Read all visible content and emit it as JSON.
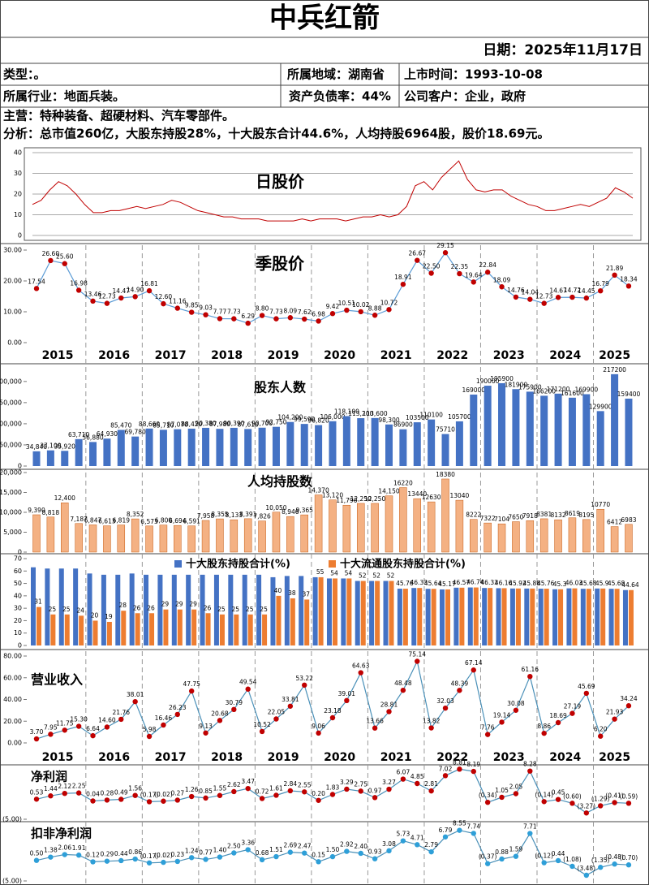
{
  "header": {
    "title": "中兵红箭",
    "date": "日期：2025年11月17日"
  },
  "info": {
    "rows": [
      [
        "类型：。",
        "所属地域：湖南省",
        "上市时间：1993-10-08"
      ],
      [
        "所属行业：地面兵装。",
        "资产负债率：44%",
        "公司客户：企业，政府"
      ]
    ],
    "main": "主营：特种装备、超硬材料、汽车零部件。",
    "analysis": "分析：总市值260亿，大股东持股28%，十大股东合计44.6%，人均持股6964股，股价18.69元。"
  },
  "years": [
    "2015",
    "2016",
    "2017",
    "2018",
    "2019",
    "2020",
    "2021",
    "2022",
    "2023",
    "2024",
    "2025"
  ],
  "chart_data": [
    {
      "type": "line",
      "title": "日股价",
      "color": "#c00000",
      "ylim": [
        0,
        40
      ],
      "yticks": [
        0,
        10,
        20,
        30,
        40
      ],
      "grid": true,
      "values": [
        15,
        17,
        22,
        26,
        24,
        20,
        15,
        11,
        11,
        12,
        12,
        13,
        14,
        13,
        14,
        15,
        17,
        16,
        14,
        12,
        11,
        10,
        9,
        9,
        8,
        8,
        8,
        7,
        7,
        7,
        7,
        8,
        7,
        8,
        8,
        8,
        7,
        8,
        9,
        9,
        10,
        9,
        10,
        14,
        24,
        26,
        22,
        28,
        32,
        36,
        27,
        22,
        21,
        22,
        22,
        19,
        17,
        15,
        14,
        12,
        12,
        13,
        14,
        15,
        14,
        16,
        18,
        23,
        21,
        18
      ]
    },
    {
      "type": "line",
      "title": "季股价",
      "color": "#5b9bd5",
      "marker_color": "#c00000",
      "ylim": [
        0,
        30
      ],
      "yticks": [
        {
          "value": 0,
          "label": "0.00"
        },
        {
          "value": 10,
          "label": "10.00"
        },
        {
          "value": 20,
          "label": "20.00"
        },
        {
          "value": 30,
          "label": "30.00"
        }
      ],
      "values": [
        17.54,
        26.6,
        25.6,
        16.98,
        13.46,
        12.73,
        14.47,
        14.9,
        16.81,
        12.6,
        11.16,
        9.85,
        9.03,
        7.77,
        7.73,
        6.29,
        8.8,
        7.73,
        8.09,
        7.62,
        6.98,
        9.42,
        10.51,
        10.02,
        8.88,
        10.72,
        18.91,
        26.67,
        22.5,
        29.15,
        22.35,
        19.64,
        22.84,
        18.09,
        14.76,
        14.04,
        12.73,
        14.67,
        14.72,
        14.45,
        16.79,
        21.89,
        18.34
      ],
      "value_labels": [
        "17.54",
        "26.60",
        "25.60",
        "16.98",
        "13.46",
        "12.73",
        "14.47",
        "14.90",
        "16.81",
        "12.60",
        "11.16",
        "9.85",
        "9.03",
        "7.77",
        "7.73",
        "6.29",
        "8.80",
        "7.73",
        "8.09",
        "7.62",
        "6.98",
        "9.42",
        "10.51",
        "10.02",
        "8.88",
        "10.72",
        "18.91",
        "26.67",
        "22.50",
        "29.15",
        "22.35",
        "19.64",
        "22.84",
        "18.09",
        "14.76",
        "14.04",
        "12.73",
        "14.67",
        "14.72",
        "14.45",
        "16.79",
        "21.89",
        "18.34"
      ]
    },
    {
      "type": "bar",
      "title": "股东人数",
      "color": "#4472c4",
      "ylim": [
        0,
        240000
      ],
      "yticks": [
        0,
        {
          "value": 50000,
          "label": "50,000"
        },
        {
          "value": 100000,
          "label": "100,000"
        },
        {
          "value": 150000,
          "label": "150,000"
        },
        {
          "value": 200000,
          "label": "200,000"
        }
      ],
      "values": [
        34840,
        37100,
        35920,
        63710,
        56880,
        64930,
        85470,
        69780,
        88660,
        85710,
        87070,
        88420,
        90380,
        87980,
        90390,
        87610,
        90700,
        92750,
        104200,
        99590,
        96820,
        106000,
        118100,
        113200,
        113600,
        98300,
        86900,
        103500,
        110100,
        75710,
        105700,
        169000,
        190000,
        195900,
        181900,
        175900,
        166200,
        171200,
        161600,
        169900,
        129900,
        217200,
        159400
      ],
      "value_labels": [
        "34,840",
        "37,100",
        "35,920",
        "63,710",
        "56,880",
        "64,930",
        "85,470",
        "69,780",
        "88,660",
        "85,710",
        "87,070",
        "88,420",
        "90,380",
        "87,980",
        "90,390",
        "87,610",
        "90,700",
        "92,750",
        "104,200",
        "99,590",
        "96,820",
        "106,000",
        "118,100",
        "113,200",
        "113,600",
        "98,300",
        "86900",
        "103500",
        "110100",
        "75710",
        "105700",
        "169000",
        "190000",
        "195900",
        "181900",
        "175900",
        "166200",
        "171200",
        "161600",
        "169900",
        "129900",
        "217200",
        "159400"
      ]
    },
    {
      "type": "bar",
      "title": "人均持股数",
      "color": "#f4b183",
      "ylim": [
        0,
        20000
      ],
      "yticks": [
        0,
        {
          "value": 5000,
          "label": "5,000"
        },
        {
          "value": 10000,
          "label": "10,000"
        },
        {
          "value": 15000,
          "label": "15,000"
        },
        {
          "value": 20000,
          "label": "20,000"
        }
      ],
      "values": [
        9390,
        8818,
        12400,
        7187,
        6847,
        6613,
        6819,
        8352,
        6573,
        6800,
        6694,
        6591,
        7958,
        8355,
        8133,
        8391,
        7826,
        10050,
        8946,
        9365,
        14370,
        13120,
        11790,
        12250,
        12250,
        14150,
        16220,
        13440,
        12630,
        18380,
        13040,
        8222,
        7322,
        7104,
        7650,
        7918,
        8381,
        8132,
        8619,
        8195,
        10770,
        6412,
        6983
      ],
      "value_labels": [
        "9,390",
        "8,818",
        "12,400",
        "7,187",
        "6,847",
        "6,613",
        "6,819",
        "8,352",
        "6,573",
        "6,800",
        "6,694",
        "6,591",
        "7,958",
        "8,355",
        "8,133",
        "8,391",
        "7,826",
        "10,050",
        "8,946",
        "9,365",
        "14,370",
        "13,120",
        "11,790",
        "12,250",
        "12,250",
        "14,150",
        "16220",
        "13440",
        "12630",
        "18380",
        "13040",
        "8222",
        "7322",
        "7104",
        "7650",
        "7918",
        "8381",
        "8132",
        "8619",
        "8195",
        "10770",
        "6412",
        "6983"
      ]
    },
    {
      "type": "grouped_bar",
      "ylim": [
        0,
        70
      ],
      "yticks": [
        0,
        10,
        20,
        30,
        40,
        50,
        60,
        70
      ],
      "series": [
        {
          "name": "十大股东持股合计(%)",
          "color": "#4472c4",
          "values": [
            63,
            62,
            62,
            62,
            58,
            57,
            57,
            58,
            57,
            57,
            57,
            57,
            57,
            57,
            57,
            57,
            57,
            55,
            56,
            56,
            55,
            54,
            54,
            52,
            52,
            52,
            45.76,
            46.33,
            45.64,
            45.17,
            46.57,
            46.74,
            46.33,
            46.16,
            45.92,
            45.88,
            45.76,
            45.3,
            46.03,
            45.68,
            45.9,
            45.68,
            44.64
          ]
        },
        {
          "name": "十大流通股东持股合计(%)",
          "color": "#ed7d31",
          "values": [
            31,
            25,
            25,
            24,
            20,
            19,
            28,
            26,
            26,
            29,
            29,
            29,
            26,
            25,
            25,
            25,
            25,
            40,
            38,
            37,
            55,
            54,
            54,
            52,
            52,
            52,
            45.76,
            46.33,
            45.64,
            45.17,
            46.57,
            46.74,
            46.33,
            46.16,
            45.92,
            45.88,
            45.76,
            45.3,
            46.03,
            45.68,
            45.9,
            45.68,
            44.64
          ]
        }
      ]
    },
    {
      "type": "line",
      "title": "营业收入",
      "color": "#4a90b8",
      "marker_color": "#c00000",
      "ylim": [
        0,
        80
      ],
      "yticks": [
        {
          "value": 0,
          "label": "0.00"
        },
        {
          "value": 20,
          "label": "20.00"
        },
        {
          "value": 40,
          "label": "40.00"
        },
        {
          "value": 60,
          "label": "60.00"
        },
        {
          "value": 80,
          "label": "80.00"
        }
      ],
      "values": [
        3.7,
        7.95,
        11.75,
        15.3,
        6.64,
        14.6,
        21.76,
        38.01,
        5.98,
        16.46,
        26.23,
        47.75,
        9.13,
        20.68,
        30.79,
        49.54,
        10.52,
        22.05,
        33.81,
        53.22,
        9.06,
        23.18,
        39.01,
        64.63,
        13.66,
        28.81,
        48.48,
        75.14,
        13.82,
        32.03,
        48.39,
        67.14,
        7.76,
        19.14,
        30.08,
        61.16,
        8.86,
        18.69,
        27.19,
        45.69,
        6.2,
        21.93,
        34.24
      ],
      "value_labels": [
        "3.70",
        "7.95",
        "11.75",
        "15.30",
        "6.64",
        "14.60",
        "21.76",
        "38.01",
        "5.98",
        "16.46",
        "26.23",
        "47.75",
        "9.13",
        "20.68",
        "30.79",
        "49.54",
        "10.52",
        "22.05",
        "33.81",
        "53.22",
        "9.06",
        "23.18",
        "39.01",
        "64.63",
        "13.66",
        "28.81",
        "48.48",
        "75.14",
        "13.82",
        "32.03",
        "48.39",
        "67.14",
        "7.76",
        "19.14",
        "30.08",
        "61.16",
        "8.86",
        "18.69",
        "27.19",
        "45.69",
        "6.20",
        "21.93",
        "34.24"
      ]
    },
    {
      "type": "line",
      "title": "净利润",
      "color": "#4a90b8",
      "marker_color": "#c00000",
      "ylim": [
        -5,
        10
      ],
      "yticks": [
        {
          "value": -5,
          "label": "(5.00)"
        }
      ],
      "values": [
        0.53,
        1.44,
        2.12,
        2.25,
        0.04,
        0.28,
        0.49,
        1.56,
        -0.17,
        -0.02,
        0.27,
        1.26,
        0.85,
        1.55,
        2.62,
        3.47,
        0.72,
        1.61,
        2.84,
        2.55,
        0.2,
        1.83,
        3.29,
        2.75,
        0.97,
        3.27,
        6.07,
        4.85,
        2.81,
        7.02,
        8.81,
        8.19,
        -0.34,
        1.05,
        2.05,
        8.28,
        -0.14,
        0.45,
        -0.6,
        -3.27,
        -1.29,
        -0.41,
        -0.59
      ],
      "value_labels": [
        "0.53",
        "1.44",
        "2.12",
        "2.25",
        "0.04",
        "0.28",
        "0.49",
        "1.56",
        "(0.17)",
        "(0.02)",
        "0.27",
        "1.26",
        "0.85",
        "1.55",
        "2.62",
        "3.47",
        "0.72",
        "1.61",
        "2.84",
        "2.55",
        "0.20",
        "1.83",
        "3.29",
        "2.75",
        "0.97",
        "3.27",
        "6.07",
        "4.85",
        "2.81",
        "7.02",
        "8.81",
        "8.19",
        "(0.34)",
        "1.05",
        "2.05",
        "8.28",
        "(0.14)",
        "0.45",
        "(0.60)",
        "(3.27)",
        "(1.29)",
        "(0.41)",
        "(0.59)"
      ]
    },
    {
      "type": "line",
      "title": "扣非净利润",
      "color": "#4a90b8",
      "marker_color": "#2e9fd8",
      "ylim": [
        -5,
        10
      ],
      "yticks": [
        {
          "value": -5,
          "label": "(5.00)"
        }
      ],
      "values": [
        0.5,
        1.38,
        2.06,
        1.91,
        0.12,
        0.29,
        0.44,
        0.86,
        -0.17,
        -0.02,
        0.23,
        1.24,
        0.77,
        1.4,
        2.5,
        3.36,
        0.68,
        1.51,
        2.69,
        2.47,
        0.15,
        1.5,
        2.92,
        2.4,
        0.93,
        3.08,
        5.73,
        4.71,
        2.79,
        6.79,
        8.55,
        7.74,
        -0.37,
        0.88,
        1.59,
        7.71,
        -0.12,
        0.44,
        -1.08,
        -3.48,
        -1.35,
        -0.48,
        -0.7
      ],
      "value_labels": [
        "0.50",
        "1.38",
        "2.06",
        "1.91",
        "0.12",
        "0.29",
        "0.44",
        "0.86",
        "(0.17)",
        "(0.02)",
        "0.23",
        "1.24",
        "0.77",
        "1.40",
        "2.50",
        "3.36",
        "0.68",
        "1.51",
        "2.69",
        "2.47",
        "0.15",
        "1.50",
        "2.92",
        "2.40",
        "0.93",
        "3.08",
        "5.73",
        "4.71",
        "2.79",
        "6.79",
        "8.55",
        "7.74",
        "(0.37)",
        "0.88",
        "1.59",
        "7.71",
        "(0.12)",
        "0.44",
        "(1.08)",
        "(3.48)",
        "(1.35)",
        "(0.48)",
        "(0.70)"
      ]
    }
  ]
}
